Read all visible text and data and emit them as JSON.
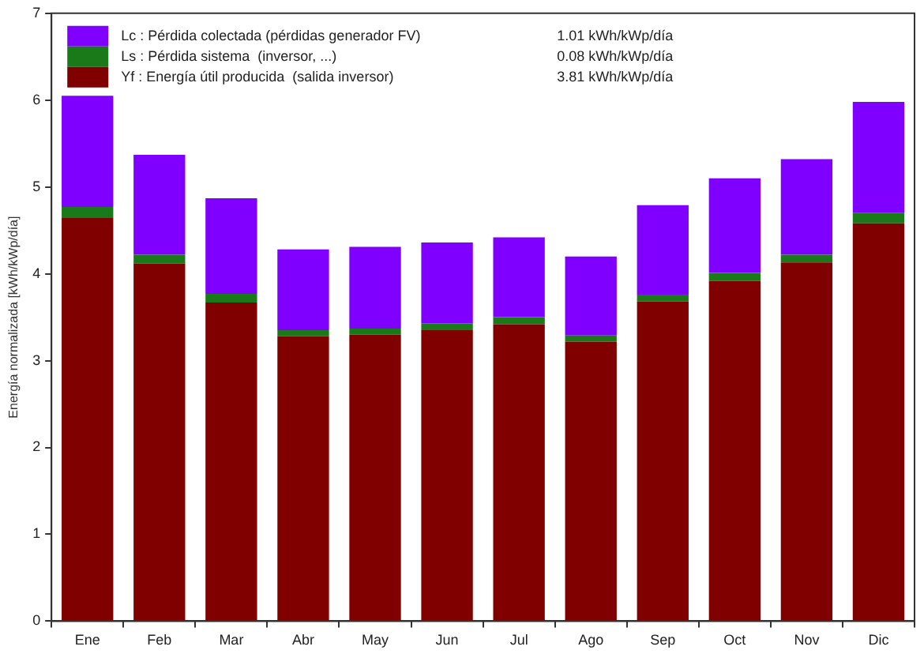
{
  "chart_data": {
    "type": "bar",
    "stacked": true,
    "ylabel": "Energía normalizada [kWh/kWp/día]",
    "categories": [
      "Ene",
      "Feb",
      "Mar",
      "Abr",
      "May",
      "Jun",
      "Jul",
      "Ago",
      "Sep",
      "Oct",
      "Nov",
      "Dic"
    ],
    "series": [
      {
        "name": "Yf : Energía útil producida  (salida inversor)",
        "color": "#800000",
        "values": [
          4.65,
          4.12,
          3.67,
          3.28,
          3.3,
          3.35,
          3.42,
          3.22,
          3.68,
          3.92,
          4.13,
          4.58
        ]
      },
      {
        "name": "Ls : Pérdida sistema  (inversor, ...)",
        "color": "#1a7a1a",
        "values": [
          0.12,
          0.1,
          0.1,
          0.07,
          0.07,
          0.08,
          0.08,
          0.07,
          0.08,
          0.09,
          0.09,
          0.12
        ]
      },
      {
        "name": "Lc : Pérdida colectada (pérdidas generador FV)",
        "color": "#8000ff",
        "values": [
          1.28,
          1.15,
          1.1,
          0.93,
          0.94,
          0.93,
          0.92,
          0.91,
          1.03,
          1.09,
          1.1,
          1.28
        ]
      }
    ],
    "annotations": [
      "3.81 kWh/kWp/día",
      "0.08 kWh/kWp/día",
      "1.01 kWh/kWp/día"
    ],
    "ylim": [
      0,
      7
    ],
    "yticks": [
      0,
      1,
      2,
      3,
      4,
      5,
      6,
      7
    ],
    "grid": false,
    "legend": "top left"
  }
}
